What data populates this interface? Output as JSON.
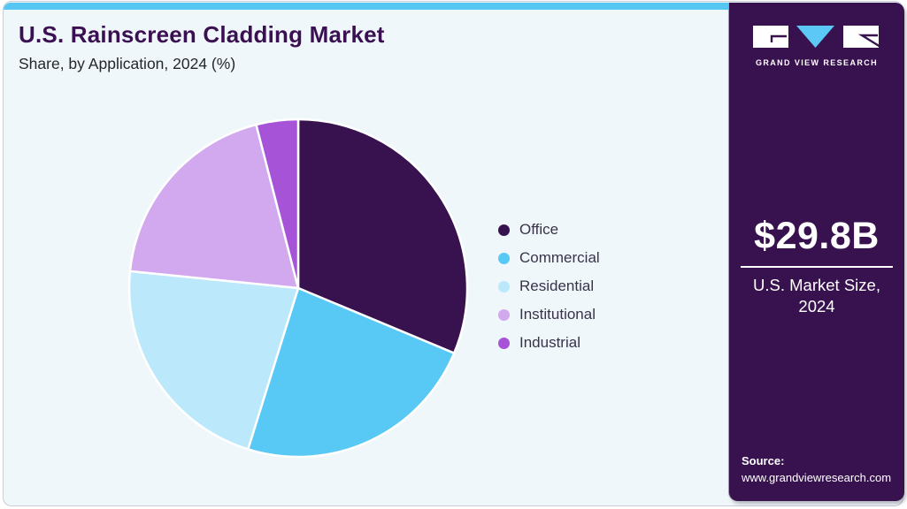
{
  "header": {
    "title": "U.S. Rainscreen Cladding Market",
    "subtitle": "Share, by Application, 2024 (%)"
  },
  "chart_data": {
    "type": "pie",
    "title": "U.S. Rainscreen Cladding Market Share, by Application, 2024 (%)",
    "unit": "%",
    "start_angle_deg": 0,
    "direction": "clockwise",
    "legend_position": "right",
    "values_are_estimates": true,
    "slices": [
      {
        "label": "Office",
        "value": 31.3,
        "color": "#38124E"
      },
      {
        "label": "Commercial",
        "value": 23.5,
        "color": "#58C8F5"
      },
      {
        "label": "Residential",
        "value": 21.8,
        "color": "#BCE8FB"
      },
      {
        "label": "Institutional",
        "value": 19.4,
        "color": "#D2A9EF"
      },
      {
        "label": "Industrial",
        "value": 4.0,
        "color": "#A653D8"
      }
    ]
  },
  "sidebar": {
    "logo": {
      "brand": "GRAND VIEW RESEARCH"
    },
    "market_size": {
      "value": "$29.8B",
      "label": "U.S. Market Size, 2024"
    },
    "source": {
      "label": "Source:",
      "url": "www.grandviewresearch.com"
    }
  },
  "theme": {
    "top_bar": "#56C7F3",
    "sidebar_bg": "#38124E",
    "panel_bg": "#F0F7FB",
    "title_color": "#3B1053",
    "logo_triangle": "#5BC8F5"
  }
}
